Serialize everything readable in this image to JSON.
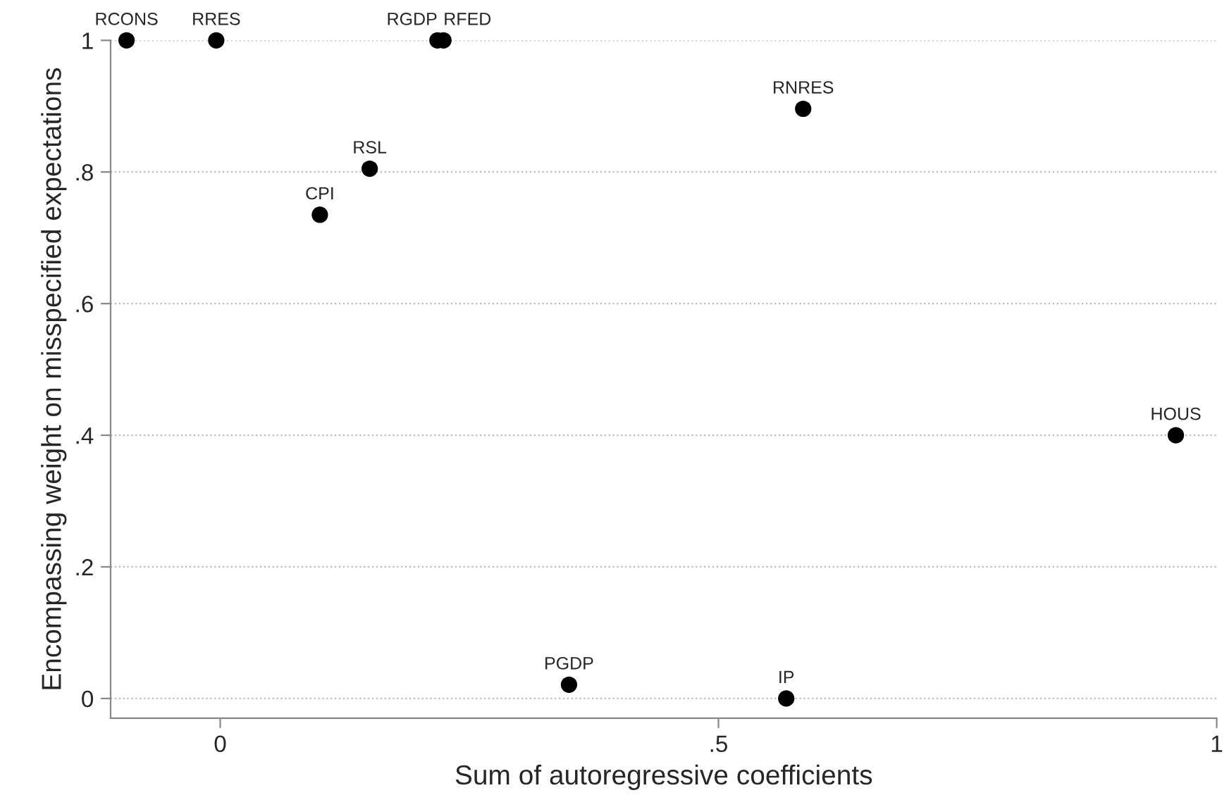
{
  "chart_data": {
    "type": "scatter",
    "xlabel": "Sum of autoregressive coefficients",
    "ylabel": "Encompassing weight on misspecified expectations",
    "x": [
      -0.094,
      -0.004,
      0.218,
      0.224,
      0.585,
      0.15,
      0.1,
      0.959,
      0.35,
      0.568
    ],
    "series": [
      {
        "color": "#000000",
        "values": [
          1,
          1,
          1,
          1,
          0.896,
          0.805,
          0.735,
          0.4,
          0.021,
          0
        ]
      }
    ],
    "annotations": [
      {
        "text": "RCONS",
        "x": -0.094,
        "y": 1
      },
      {
        "text": "RRES",
        "x": -0.004,
        "y": 1
      },
      {
        "text": "RGDP",
        "x": 0.218,
        "y": 1
      },
      {
        "text": "RFED",
        "x": 0.224,
        "y": 1
      },
      {
        "text": "RNRES",
        "x": 0.585,
        "y": 0.896
      },
      {
        "text": "RSL",
        "x": 0.15,
        "y": 0.805
      },
      {
        "text": "CPI",
        "x": 0.1,
        "y": 0.735
      },
      {
        "text": "HOUS",
        "x": 0.959,
        "y": 0.4
      },
      {
        "text": "PGDP",
        "x": 0.35,
        "y": 0.021
      },
      {
        "text": "IP",
        "x": 0.568,
        "y": 0
      }
    ],
    "xlim": [
      -0.11,
      1.0
    ],
    "ylim": [
      -0.03,
      1.0
    ],
    "xticks": [
      {
        "value": 0,
        "label": "0"
      },
      {
        "value": 0.5,
        "label": ".5"
      },
      {
        "value": 1,
        "label": "1"
      }
    ],
    "yticks": [
      {
        "value": 0,
        "label": "0"
      },
      {
        "value": 0.2,
        "label": ".2"
      },
      {
        "value": 0.4,
        "label": ".4"
      },
      {
        "value": 0.6,
        "label": ".6"
      },
      {
        "value": 0.8,
        "label": ".8"
      },
      {
        "value": 1,
        "label": "1"
      }
    ],
    "grid": "y",
    "marker": "circle"
  }
}
